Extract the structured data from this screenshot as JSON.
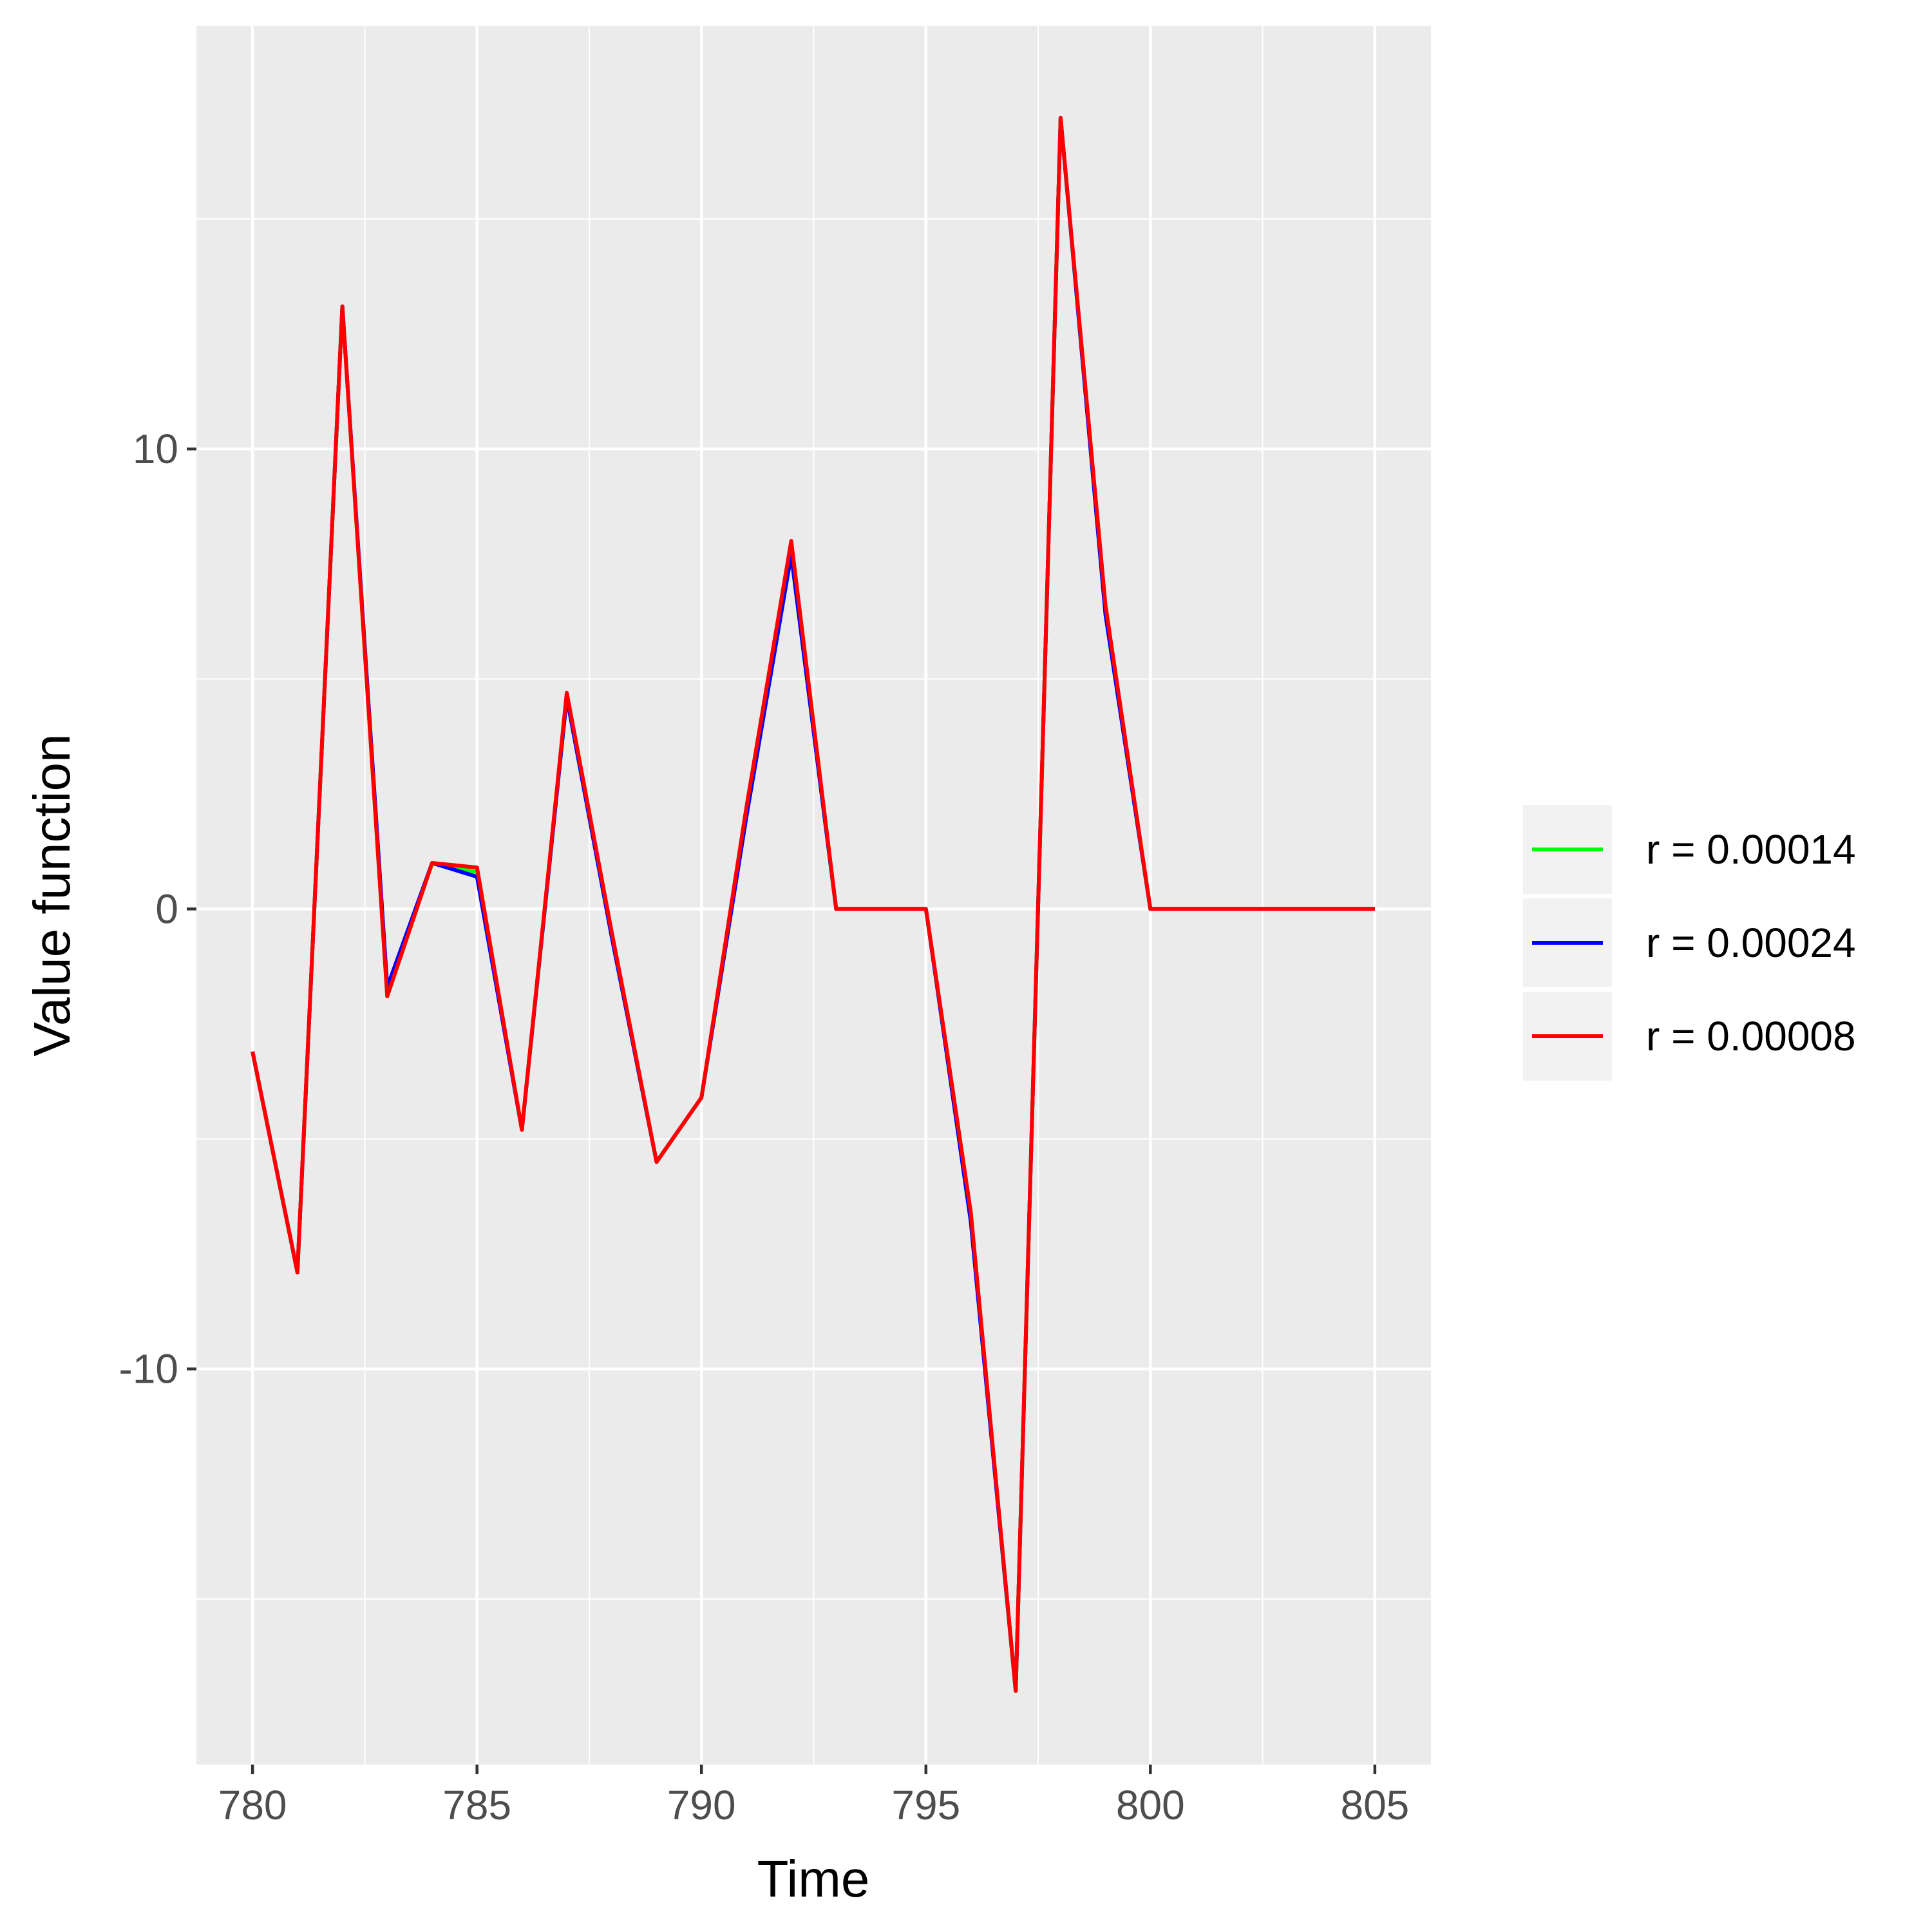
{
  "chart_data": {
    "type": "line",
    "title": "",
    "xlabel": "Time",
    "ylabel": "Value function",
    "xlim": [
      778.75,
      806.25
    ],
    "ylim": [
      -18.6,
      19.2
    ],
    "x_ticks": [
      780,
      785,
      790,
      795,
      800,
      805
    ],
    "x_tick_labels": [
      "780",
      "785",
      "790",
      "795",
      "800",
      "805"
    ],
    "y_ticks": [
      -10,
      0,
      10
    ],
    "y_tick_labels": [
      "-10",
      "0",
      "10"
    ],
    "grid": true,
    "legend_position": "right",
    "x": [
      780,
      781,
      782,
      783,
      784,
      785,
      786,
      787,
      788,
      789,
      790,
      791,
      792,
      793,
      794,
      795,
      796,
      797,
      798,
      799,
      800,
      801,
      802,
      803,
      804,
      805
    ],
    "series": [
      {
        "name": "r = 0.00014",
        "color": "#00ff00",
        "values": [
          -3.1,
          -7.9,
          13.1,
          -1.9,
          1.0,
          0.8,
          -4.8,
          4.6,
          -0.6,
          -5.5,
          -4.1,
          2.0,
          7.7,
          0.0,
          0.0,
          0.0,
          -6.8,
          -17.0,
          17.2,
          6.4,
          0.0,
          0.0,
          0.0,
          0.0,
          0.0,
          0.0
        ]
      },
      {
        "name": "r = 0.00024",
        "color": "#0000ff",
        "values": [
          -3.1,
          -7.9,
          13.1,
          -1.7,
          1.0,
          0.7,
          -4.8,
          4.6,
          -0.6,
          -5.5,
          -4.1,
          2.0,
          7.7,
          0.0,
          0.0,
          0.0,
          -6.8,
          -17.0,
          17.2,
          6.4,
          0.0,
          0.0,
          0.0,
          0.0,
          0.0,
          0.0
        ]
      },
      {
        "name": "r = 0.00008",
        "color": "#ff0000",
        "values": [
          -3.1,
          -7.9,
          13.1,
          -1.9,
          1.0,
          0.9,
          -4.8,
          4.7,
          -0.5,
          -5.5,
          -4.1,
          2.2,
          8.0,
          0.0,
          0.0,
          0.0,
          -6.6,
          -17.0,
          17.2,
          6.6,
          0.0,
          0.0,
          0.0,
          0.0,
          0.0,
          0.0
        ]
      }
    ]
  },
  "colors": {
    "panel_background": "#ebebeb",
    "grid_line": "#ffffff",
    "legend_key_background": "#f2f2f2",
    "tick_text": "#4d4d4d"
  }
}
